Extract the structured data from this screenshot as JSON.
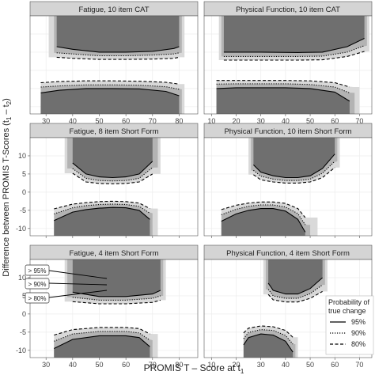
{
  "figure": {
    "ylabel_main": "Difference between PROMIS T-Scores (t",
    "ylabel_sub1": "1",
    "ylabel_mid": " – t",
    "ylabel_sub2": "2",
    "ylabel_end": ")",
    "xlabel_main": "PROMIS T – Score at t",
    "xlabel_sub": "1"
  },
  "legend": {
    "title_line1": "Probability of",
    "title_line2": "true change",
    "entries": [
      {
        "label": "95%",
        "linetype": "solid"
      },
      {
        "label": "90%",
        "linetype": "dotted"
      },
      {
        "label": "80%",
        "linetype": "dashed"
      }
    ]
  },
  "callouts": [
    "> 95%",
    "> 90%",
    "> 80%"
  ],
  "colors": {
    "band_95": "#6f6f6f",
    "band_90": "#b3b3b3",
    "band_80": "#d9d9d9",
    "strip": "#d4d4d4",
    "panel_bg": "#ffffff",
    "grid": "#ececec"
  },
  "chart_data": [
    {
      "type": "area",
      "title": "Fatigue, 10 item CAT",
      "xlim": [
        24,
        87
      ],
      "ylim": [
        -12,
        15
      ],
      "xticks": [
        30,
        40,
        50,
        60,
        70,
        80
      ],
      "yticks": [
        -10,
        -5,
        0,
        5,
        10
      ],
      "show_x_ticklabels": true,
      "show_y_ticklabels": false,
      "upper": {
        "x": [
          34,
          40,
          50,
          60,
          70,
          78,
          80
        ],
        "y95": [
          6.5,
          5.8,
          5.0,
          5.0,
          5.2,
          6.0,
          6.5
        ],
        "y90": [
          4.8,
          4.5,
          4.0,
          4.0,
          4.2,
          4.5,
          4.8
        ],
        "y80": [
          3.6,
          3.3,
          3.0,
          3.0,
          3.1,
          3.3,
          3.6
        ],
        "top": 15,
        "x90": [
          33,
          81
        ],
        "x80": [
          31,
          82
        ]
      },
      "lower": {
        "x": [
          28,
          35,
          45,
          55,
          65,
          75,
          80
        ],
        "y95": [
          -6.2,
          -5.5,
          -5.0,
          -5.0,
          -5.1,
          -5.8,
          -7.0
        ],
        "y90": [
          -4.6,
          -4.3,
          -4.0,
          -4.0,
          -4.1,
          -4.5,
          -5.2
        ],
        "y80": [
          -3.4,
          -3.1,
          -2.9,
          -2.9,
          -3.0,
          -3.3,
          -3.8
        ],
        "bottom": -12,
        "x90": [
          28,
          81
        ],
        "x80": [
          28,
          82
        ]
      }
    },
    {
      "type": "area",
      "title": "Physical Function, 10 item CAT",
      "xlim": [
        7,
        75
      ],
      "ylim": [
        -12,
        15
      ],
      "xticks": [
        10,
        20,
        30,
        40,
        50,
        60,
        70
      ],
      "yticks": [
        -10,
        -5,
        0,
        5,
        10
      ],
      "show_x_ticklabels": true,
      "show_y_ticklabels": false,
      "upper": {
        "x": [
          15,
          30,
          45,
          55,
          65,
          72
        ],
        "y95": [
          5.0,
          5.0,
          4.9,
          5.0,
          6.5,
          8.8
        ],
        "y90": [
          3.8,
          3.8,
          3.8,
          3.9,
          5.0,
          6.8
        ],
        "y80": [
          2.8,
          2.8,
          2.8,
          2.9,
          3.8,
          5.2
        ],
        "top": 15,
        "x90": [
          14,
          73
        ],
        "x80": [
          13,
          74
        ]
      },
      "lower": {
        "x": [
          12,
          20,
          30,
          40,
          50,
          60,
          66
        ],
        "y95": [
          -5.0,
          -4.8,
          -4.8,
          -4.8,
          -5.0,
          -6.0,
          -8.5
        ],
        "y90": [
          -3.8,
          -3.7,
          -3.7,
          -3.7,
          -3.9,
          -4.6,
          -6.2
        ],
        "y80": [
          -2.8,
          -2.8,
          -2.8,
          -2.8,
          -2.9,
          -3.4,
          -4.6
        ],
        "bottom": -12,
        "x90": [
          12,
          68
        ],
        "x80": [
          12,
          70
        ]
      }
    },
    {
      "type": "area",
      "title": "Fatigue, 8 item Short Form",
      "xlim": [
        24,
        87
      ],
      "ylim": [
        -12,
        15
      ],
      "xticks": [
        30,
        40,
        50,
        60,
        70,
        80
      ],
      "yticks": [
        -10,
        -5,
        0,
        5,
        10
      ],
      "show_x_ticklabels": false,
      "show_y_ticklabels": true,
      "upper": {
        "x": [
          40,
          45,
          50,
          55,
          60,
          65,
          70
        ],
        "y95": [
          8.0,
          5.0,
          4.2,
          4.0,
          4.2,
          5.0,
          8.5
        ],
        "y90": [
          6.5,
          3.8,
          3.2,
          3.1,
          3.2,
          3.8,
          6.8
        ],
        "y80": [
          5.2,
          2.8,
          2.4,
          2.3,
          2.4,
          2.8,
          5.0
        ],
        "top": 15,
        "x90": [
          38,
          72
        ],
        "x80": [
          37,
          73
        ]
      },
      "lower": {
        "x": [
          33,
          40,
          45,
          50,
          55,
          60,
          65,
          69
        ],
        "y95": [
          -7.8,
          -5.5,
          -4.8,
          -4.4,
          -4.2,
          -4.3,
          -5.0,
          -7.5
        ],
        "y90": [
          -6.0,
          -4.3,
          -3.7,
          -3.4,
          -3.3,
          -3.4,
          -3.9,
          -5.8
        ],
        "y80": [
          -4.6,
          -3.3,
          -2.9,
          -2.6,
          -2.5,
          -2.6,
          -3.0,
          -4.5
        ],
        "bottom": -12,
        "x90": [
          33,
          70
        ],
        "x80": [
          33,
          72
        ]
      }
    },
    {
      "type": "area",
      "title": "Physical Function, 10 item Short Form",
      "xlim": [
        7,
        75
      ],
      "ylim": [
        -12,
        15
      ],
      "xticks": [
        10,
        20,
        30,
        40,
        50,
        60,
        70
      ],
      "yticks": [
        -10,
        -5,
        0,
        5,
        10
      ],
      "show_x_ticklabels": false,
      "show_y_ticklabels": false,
      "upper": {
        "x": [
          27,
          30,
          35,
          40,
          45,
          50,
          55,
          60
        ],
        "y95": [
          7.5,
          5.5,
          4.5,
          4.0,
          4.0,
          4.5,
          6.5,
          10.5
        ],
        "y90": [
          6.0,
          4.4,
          3.6,
          3.2,
          3.2,
          3.6,
          5.2,
          8.5
        ],
        "y80": [
          4.8,
          3.4,
          2.8,
          2.5,
          2.5,
          2.8,
          4.0,
          6.8
        ],
        "top": 15,
        "x90": [
          26,
          61
        ],
        "x80": [
          25,
          62
        ]
      },
      "lower": {
        "x": [
          14,
          20,
          25,
          30,
          35,
          40,
          45,
          48
        ],
        "y95": [
          -8.0,
          -6.0,
          -5.0,
          -4.5,
          -4.5,
          -5.2,
          -7.5,
          -11.0
        ],
        "y90": [
          -6.2,
          -4.7,
          -3.9,
          -3.5,
          -3.5,
          -4.1,
          -5.9,
          -9.0
        ],
        "y80": [
          -4.8,
          -3.6,
          -3.0,
          -2.7,
          -2.7,
          -3.1,
          -4.5,
          -7.0
        ],
        "bottom": -12,
        "x90": [
          14,
          50
        ],
        "x80": [
          14,
          53
        ]
      }
    },
    {
      "type": "area",
      "title": "Fatigue, 4 item Short Form",
      "xlim": [
        24,
        87
      ],
      "ylim": [
        -12,
        15
      ],
      "xticks": [
        30,
        40,
        50,
        60,
        70,
        80
      ],
      "yticks": [
        -10,
        -5,
        0,
        5,
        10
      ],
      "show_x_ticklabels": true,
      "show_y_ticklabels": true,
      "upper": {
        "x": [
          40,
          50,
          60,
          70,
          73
        ],
        "y95": [
          6.0,
          4.8,
          4.8,
          5.5,
          6.5
        ],
        "y90": [
          4.6,
          3.8,
          3.8,
          4.3,
          5.0
        ],
        "y80": [
          3.4,
          2.8,
          2.8,
          3.2,
          3.8
        ],
        "top": 15,
        "x90": [
          38,
          74
        ],
        "x80": [
          37,
          75
        ]
      },
      "lower": {
        "x": [
          33,
          40,
          50,
          60,
          65,
          69
        ],
        "y95": [
          -9.5,
          -7.0,
          -6.0,
          -6.0,
          -6.5,
          -9.0
        ],
        "y90": [
          -7.5,
          -5.5,
          -4.8,
          -4.8,
          -5.2,
          -7.2
        ],
        "y80": [
          -5.8,
          -4.3,
          -3.7,
          -3.7,
          -4.0,
          -5.5
        ],
        "bottom": -12,
        "x90": [
          33,
          70
        ],
        "x80": [
          33,
          72
        ]
      }
    },
    {
      "type": "area",
      "title": "Physical Function, 4 item Short Form",
      "xlim": [
        7,
        75
      ],
      "ylim": [
        -12,
        15
      ],
      "xticks": [
        10,
        20,
        30,
        40,
        50,
        60,
        70
      ],
      "yticks": [
        -10,
        -5,
        0,
        5,
        10
      ],
      "show_x_ticklabels": true,
      "show_y_ticklabels": false,
      "upper": {
        "x": [
          33,
          35,
          40,
          45,
          50,
          55
        ],
        "y95": [
          8.5,
          6.5,
          5.5,
          5.5,
          7.0,
          10.0
        ],
        "y90": [
          6.8,
          5.0,
          4.3,
          4.3,
          5.6,
          8.0
        ],
        "y80": [
          5.4,
          3.9,
          3.3,
          3.3,
          4.3,
          6.2
        ],
        "top": 15,
        "x90": [
          32,
          56
        ],
        "x80": [
          31,
          57
        ]
      },
      "lower": {
        "x": [
          23,
          25,
          30,
          35,
          40,
          43
        ],
        "y95": [
          -8.5,
          -6.5,
          -5.5,
          -5.8,
          -7.5,
          -10.5
        ],
        "y90": [
          -6.8,
          -5.1,
          -4.3,
          -4.5,
          -5.9,
          -8.3
        ],
        "y80": [
          -5.2,
          -3.9,
          -3.3,
          -3.5,
          -4.5,
          -6.4
        ],
        "bottom": -12,
        "x90": [
          23,
          44
        ],
        "x80": [
          23,
          45
        ]
      }
    }
  ]
}
